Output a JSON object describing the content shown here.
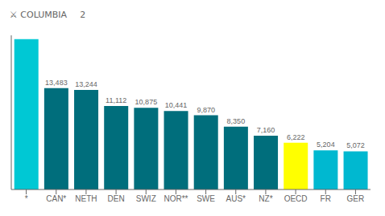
{
  "chart_data": {
    "type": "bar",
    "annotations": [
      "⚔ COLUMBIA",
      "2"
    ],
    "categories": [
      "*",
      "CAN*",
      "NETH",
      "DEN",
      "SWIZ",
      "NOR**",
      "SWE",
      "AUS*",
      "NZ*",
      "OECD",
      "FR",
      "GER"
    ],
    "values": [
      20000,
      13483,
      13244,
      11112,
      10875,
      10441,
      9870,
      8350,
      7160,
      6222,
      5204,
      5072
    ],
    "value_labels": [
      null,
      "13,483",
      "13,244",
      "11,112",
      "10,875",
      "10,441",
      "9,870",
      "8,350",
      "7,160",
      "6,222",
      "5,204",
      "5,072"
    ],
    "data_labels": true,
    "colors": [
      "#00c8d4",
      "#006e7c",
      "#006e7c",
      "#006e7c",
      "#006e7c",
      "#006e7c",
      "#006e7c",
      "#006e7c",
      "#006e7c",
      "#ffff00",
      "#00b8d0",
      "#00b8d0"
    ],
    "ylim": [
      0,
      20500
    ],
    "tick_labels": "x",
    "grid": false
  }
}
